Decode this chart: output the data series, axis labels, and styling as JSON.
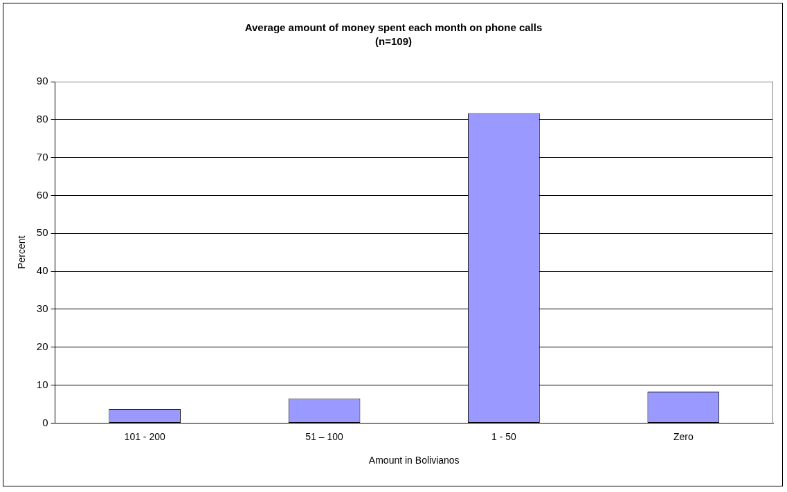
{
  "chart_data": {
    "type": "bar",
    "title": "Average amount of money spent each month on phone calls",
    "subtitle": "(n=109)",
    "xlabel": "Amount in Bolivianos",
    "ylabel": "Percent",
    "categories": [
      "101 - 200",
      "51 – 100",
      "1 - 50",
      "Zero"
    ],
    "values": [
      3.7,
      6.4,
      81.7,
      8.3
    ],
    "color": "#9999ff",
    "ylim": [
      0,
      90
    ],
    "yticks": [
      0,
      10,
      20,
      30,
      40,
      50,
      60,
      70,
      80,
      90
    ],
    "grid": "y",
    "legend": false
  }
}
